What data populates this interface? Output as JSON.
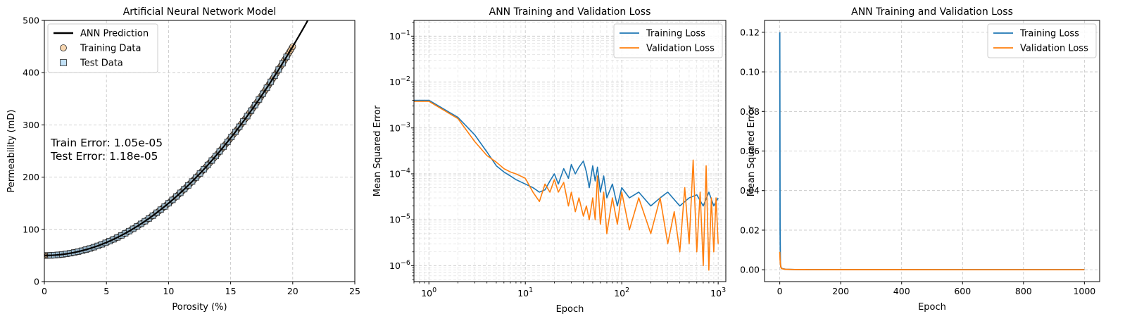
{
  "chart_data": [
    {
      "type": "scatter",
      "title": "Artificial Neural Network Model",
      "xlabel": "Porosity (%)",
      "ylabel": "Permeability (mD)",
      "xlim": [
        0,
        25
      ],
      "ylim": [
        0,
        500
      ],
      "xticks": [
        "0",
        "5",
        "10",
        "15",
        "20",
        "25"
      ],
      "yticks": [
        "0",
        "100",
        "200",
        "300",
        "400",
        "500"
      ],
      "grid": true,
      "legend": "upper-left",
      "model": {
        "intercept": 50,
        "coefficient": 1,
        "exponent": 2
      },
      "series": [
        {
          "name": "ANN Prediction",
          "kind": "line",
          "color": "#000000",
          "x_range": [
            0,
            22
          ]
        },
        {
          "name": "Training Data",
          "kind": "scatter",
          "marker": "circle",
          "color": "#f4c48f",
          "edge": "#2b2b2b",
          "x_range": [
            0,
            20
          ]
        },
        {
          "name": "Test Data",
          "kind": "scatter",
          "marker": "square",
          "color": "#a6d3f2",
          "edge": "#2b2b2b",
          "x_range": [
            0.5,
            19.5
          ]
        }
      ],
      "annotations": [
        "Train Error: 1.05e-05",
        "Test Error: 1.18e-05"
      ]
    },
    {
      "type": "line",
      "title": "ANN Training and Validation Loss",
      "xlabel": "Epoch",
      "ylabel": "Mean Squared Error",
      "xscale": "log",
      "yscale": "log",
      "xlim": [
        0.7,
        1200
      ],
      "ylim": [
        4.5e-07,
        0.22
      ],
      "xticks": [
        "10^0",
        "10^1",
        "10^2",
        "10^3"
      ],
      "yticks": [
        "10^-6",
        "10^-5",
        "10^-4",
        "10^-3",
        "10^-2",
        "10^-1"
      ],
      "grid": "both",
      "legend": "upper-right",
      "series": [
        {
          "name": "Training Loss",
          "color": "#1f77b4",
          "x": [
            0.7,
            1,
            2,
            3,
            4,
            5,
            6,
            7,
            8,
            10,
            12,
            14,
            16,
            18,
            20,
            22,
            25,
            28,
            30,
            33,
            36,
            40,
            43,
            46,
            50,
            53,
            56,
            60,
            65,
            70,
            80,
            90,
            100,
            120,
            150,
            200,
            250,
            300,
            400,
            500,
            600,
            700,
            800,
            900,
            1000
          ],
          "y": [
            0.004,
            0.004,
            0.0017,
            0.0007,
            0.0003,
            0.00015,
            0.00011,
            9e-05,
            7.5e-05,
            6e-05,
            5e-05,
            4e-05,
            4.5e-05,
            7e-05,
            0.0001,
            6e-05,
            0.00013,
            8e-05,
            0.00016,
            0.0001,
            0.00014,
            0.00019,
            0.00011,
            5e-05,
            0.00015,
            7e-05,
            0.00014,
            4e-05,
            9e-05,
            3e-05,
            6e-05,
            2e-05,
            5e-05,
            3e-05,
            4e-05,
            2e-05,
            3e-05,
            4e-05,
            2e-05,
            3e-05,
            3.5e-05,
            2e-05,
            4e-05,
            2e-05,
            3e-05
          ]
        },
        {
          "name": "Validation Loss",
          "color": "#ff7f0e",
          "x": [
            0.7,
            1,
            2,
            3,
            4,
            5,
            6,
            7,
            8,
            10,
            12,
            14,
            16,
            18,
            20,
            22,
            25,
            28,
            30,
            33,
            36,
            40,
            43,
            46,
            50,
            53,
            56,
            60,
            65,
            70,
            80,
            90,
            100,
            120,
            150,
            200,
            250,
            300,
            350,
            400,
            450,
            500,
            550,
            600,
            650,
            700,
            750,
            800,
            850,
            900,
            950,
            1000
          ],
          "y": [
            0.0038,
            0.0038,
            0.0016,
            0.0005,
            0.00025,
            0.00018,
            0.00013,
            0.00011,
            0.0001,
            8e-05,
            4e-05,
            2.5e-05,
            6e-05,
            4e-05,
            7.5e-05,
            4e-05,
            6.5e-05,
            2e-05,
            4e-05,
            1.5e-05,
            3e-05,
            1.2e-05,
            2e-05,
            1e-05,
            3e-05,
            1e-05,
            9e-05,
            8e-06,
            4e-05,
            5e-06,
            3e-05,
            8e-06,
            4e-05,
            6e-06,
            3e-05,
            5e-06,
            3e-05,
            3e-06,
            1.5e-05,
            2e-06,
            5e-05,
            3e-06,
            0.0002,
            2e-06,
            4e-05,
            1e-06,
            0.00015,
            8e-07,
            3e-05,
            2e-06,
            3e-05,
            3e-06
          ]
        }
      ]
    },
    {
      "type": "line",
      "title": "ANN Training and Validation Loss",
      "xlabel": "Epoch",
      "ylabel": "Mean Squared Error",
      "xlim": [
        -50,
        1050
      ],
      "ylim": [
        -0.006,
        0.126
      ],
      "xticks": [
        "0",
        "200",
        "400",
        "600",
        "800",
        "1000"
      ],
      "yticks": [
        "0.00",
        "0.02",
        "0.04",
        "0.06",
        "0.08",
        "0.10",
        "0.12"
      ],
      "grid": true,
      "legend": "upper-right",
      "series": [
        {
          "name": "Training Loss",
          "color": "#1f77b4",
          "x": [
            0,
            1,
            2,
            3,
            5,
            10,
            20,
            50,
            100,
            200,
            400,
            600,
            800,
            1000
          ],
          "y": [
            0.12,
            0.02,
            0.004,
            0.002,
            0.0008,
            0.0005,
            0.0002,
            0.0001,
            6e-05,
            4e-05,
            3e-05,
            2e-05,
            2e-05,
            2e-05
          ]
        },
        {
          "name": "Validation Loss",
          "color": "#ff7f0e",
          "x": [
            0,
            1,
            2,
            3,
            5,
            10,
            20,
            50,
            100,
            200,
            400,
            600,
            800,
            1000
          ],
          "y": [
            0.009,
            0.005,
            0.003,
            0.0015,
            0.0008,
            0.0004,
            0.0002,
            0.0001,
            5e-05,
            3e-05,
            2e-05,
            1e-05,
            1e-05,
            1e-05
          ]
        }
      ]
    }
  ]
}
